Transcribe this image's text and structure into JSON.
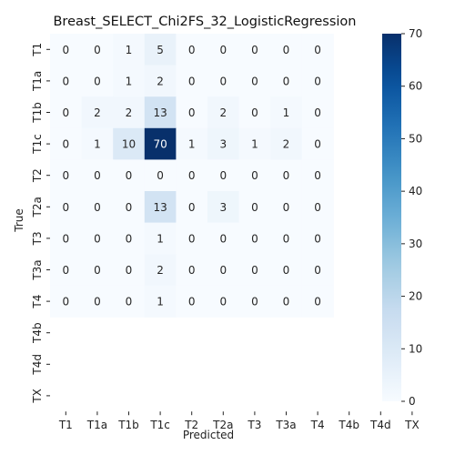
{
  "chart_data": {
    "type": "heatmap",
    "title": "Breast_SELECT_Chi2FS_32_LogisticRegression",
    "xlabel": "Predicted",
    "ylabel": "True",
    "x_categories": [
      "T1",
      "T1a",
      "T1b",
      "T1c",
      "T2",
      "T2a",
      "T3",
      "T3a",
      "T4",
      "T4b",
      "T4d",
      "TX"
    ],
    "y_categories": [
      "T1",
      "T1a",
      "T1b",
      "T1c",
      "T2",
      "T2a",
      "T3",
      "T3a",
      "T4",
      "T4b",
      "T4d",
      "TX"
    ],
    "matrix": [
      [
        0,
        0,
        1,
        5,
        0,
        0,
        0,
        0,
        0,
        null,
        null,
        null
      ],
      [
        0,
        0,
        1,
        2,
        0,
        0,
        0,
        0,
        0,
        null,
        null,
        null
      ],
      [
        0,
        2,
        2,
        13,
        0,
        2,
        0,
        1,
        0,
        null,
        null,
        null
      ],
      [
        0,
        1,
        10,
        70,
        1,
        3,
        1,
        2,
        0,
        null,
        null,
        null
      ],
      [
        0,
        0,
        0,
        0,
        0,
        0,
        0,
        0,
        0,
        null,
        null,
        null
      ],
      [
        0,
        0,
        0,
        13,
        0,
        3,
        0,
        0,
        0,
        null,
        null,
        null
      ],
      [
        0,
        0,
        0,
        1,
        0,
        0,
        0,
        0,
        0,
        null,
        null,
        null
      ],
      [
        0,
        0,
        0,
        2,
        0,
        0,
        0,
        0,
        0,
        null,
        null,
        null
      ],
      [
        0,
        0,
        0,
        1,
        0,
        0,
        0,
        0,
        0,
        null,
        null,
        null
      ],
      [
        null,
        null,
        null,
        null,
        null,
        null,
        null,
        null,
        null,
        null,
        null,
        null
      ],
      [
        null,
        null,
        null,
        null,
        null,
        null,
        null,
        null,
        null,
        null,
        null,
        null
      ],
      [
        null,
        null,
        null,
        null,
        null,
        null,
        null,
        null,
        null,
        null,
        null,
        null
      ]
    ],
    "colormap": "Blues",
    "vmin": 0,
    "vmax": 70,
    "colorbar_ticks": [
      0,
      10,
      20,
      30,
      40,
      50,
      60,
      70
    ],
    "legend_position": "right"
  }
}
